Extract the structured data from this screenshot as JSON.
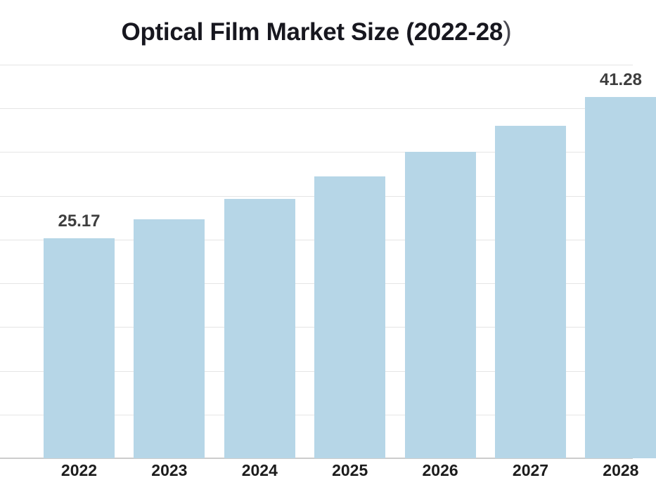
{
  "header": {
    "title_main": "Optical Film Market Size (2022-28",
    "title_paren": ")"
  },
  "chart_data": {
    "type": "bar",
    "title": "Optical Film Market Size (2022-28)",
    "categories": [
      "2022",
      "2023",
      "2024",
      "2025",
      "2026",
      "2027",
      "2028"
    ],
    "values": [
      25.17,
      27.33,
      29.68,
      32.24,
      35.0,
      38.01,
      41.28
    ],
    "data_labels": [
      "25.17",
      "",
      "",
      "",
      "",
      "",
      "41.28"
    ],
    "labeled_values": {
      "2022": 25.17,
      "2028": 41.28
    },
    "xlabel": "",
    "ylabel": "",
    "ylim": [
      0,
      45
    ],
    "grid_step": 5,
    "grid": true,
    "legend": false,
    "colors": {
      "bar": "#b6d6e7",
      "grid": "#e5e5e5",
      "axis": "#cccccc",
      "title": "#17171f",
      "title_paren": "#4a4a52",
      "value_label": "#3e3e3e",
      "tick_label": "#1c1c1c",
      "background": "#ffffff"
    }
  }
}
